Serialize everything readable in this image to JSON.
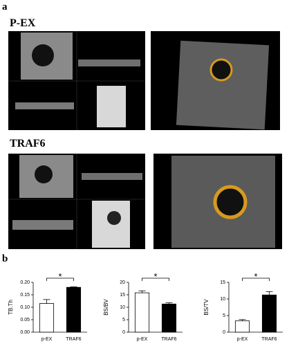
{
  "panel_labels": [
    "a",
    "b"
  ],
  "image_labels": [
    "P-EX",
    "TRAF6"
  ],
  "chart_data": [
    {
      "type": "bar",
      "y_label": "TB.Th",
      "categories": [
        "p-EX",
        "TRAF6"
      ],
      "values": [
        0.115,
        0.18
      ],
      "errors": [
        0.016,
        0.002
      ],
      "colors": [
        "#ffffff",
        "#000000"
      ],
      "annotation": "*",
      "ylim": [
        0,
        0.2
      ],
      "yticks": [
        {
          "value": 0,
          "label": "0.00"
        },
        {
          "value": 0.05,
          "label": "0.05"
        },
        {
          "value": 0.1,
          "label": "0.10"
        },
        {
          "value": 0.15,
          "label": "0.15"
        },
        {
          "value": 0.2,
          "label": "0.20"
        }
      ]
    },
    {
      "type": "bar",
      "y_label": "BS/BV",
      "categories": [
        "p-EX",
        "TRAF6"
      ],
      "values": [
        15.8,
        11.3
      ],
      "errors": [
        0.8,
        0.5
      ],
      "colors": [
        "#ffffff",
        "#000000"
      ],
      "annotation": "*",
      "ylim": [
        0,
        20
      ],
      "yticks": [
        0,
        5,
        10,
        15,
        20
      ]
    },
    {
      "type": "bar",
      "y_label": "BS/TV",
      "categories": [
        "p-EX",
        "TRAF6"
      ],
      "values": [
        3.4,
        11.2
      ],
      "errors": [
        0.4,
        1.0
      ],
      "colors": [
        "#ffffff",
        "#000000"
      ],
      "annotation": "*",
      "ylim": [
        0,
        15
      ],
      "yticks": [
        0,
        5,
        10,
        15
      ]
    }
  ]
}
